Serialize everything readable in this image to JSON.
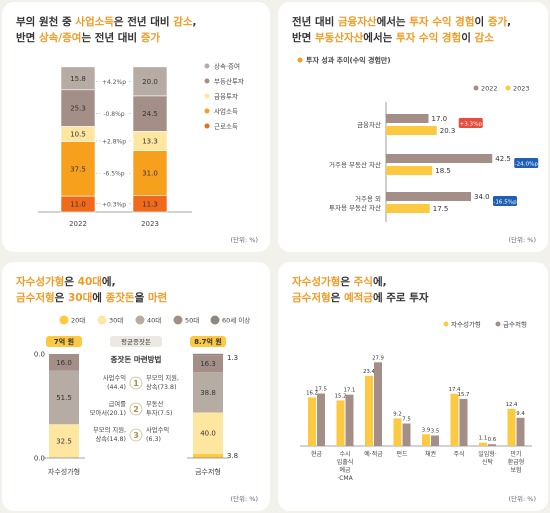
{
  "colors": {
    "gray": "#b6aca3",
    "mauve": "#a48f88",
    "lightYellow": "#fde6a0",
    "yellow": "#fcc941",
    "orange": "#f7a01e",
    "deepOrange": "#ef6a1b",
    "red": "#e94b3c",
    "blue": "#1f5fb4",
    "darkGray": "#8f8882"
  },
  "panel1": {
    "title_l1": [
      "부의 원천 중 ",
      "사업소득",
      "은 전년 대비 ",
      "감소",
      ","
    ],
    "title_l2": [
      "반면 ",
      "상속/증여",
      "는 전년 대비 ",
      "증가"
    ],
    "unit": "(단위: %)"
  },
  "panel2": {
    "title_l1": [
      "전년 대비 ",
      "금융자산",
      "에서는 ",
      "투자 수익 경험",
      "이 ",
      "증가",
      ","
    ],
    "title_l2": [
      "반면 ",
      "부동산자산",
      "에서는 ",
      "투자 수익 경험",
      "이 ",
      "감소"
    ],
    "unit": "(단위: %)"
  },
  "panel3": {
    "title_l1": [
      "자수성가형",
      "은 ",
      "40대",
      "에,"
    ],
    "title_l2": [
      "금수저형",
      "은 ",
      "30대",
      "에 ",
      "종잣돈",
      "을 ",
      "마련"
    ],
    "unit": "(단위: %)"
  },
  "panel4": {
    "title_l1": [
      "자수성가형",
      "은 ",
      "주식",
      "에,"
    ],
    "title_l2": [
      "금수저형",
      "은 ",
      "예적금",
      "에 주로 투자"
    ],
    "unit": "(단위: %)"
  },
  "chart_data": [
    {
      "type": "bar",
      "stacked": true,
      "categories": [
        "2022",
        "2023"
      ],
      "series": [
        {
          "name": "근로소득",
          "values": [
            11.0,
            11.3
          ],
          "color": "deepOrange"
        },
        {
          "name": "사업소득",
          "values": [
            37.5,
            31.0
          ],
          "color": "orange"
        },
        {
          "name": "금융투자",
          "values": [
            10.5,
            13.3
          ],
          "color": "lightYellow"
        },
        {
          "name": "부동산투자",
          "values": [
            25.3,
            24.5
          ],
          "color": "mauve"
        },
        {
          "name": "상속·증여",
          "values": [
            15.8,
            20.0
          ],
          "color": "gray"
        }
      ],
      "change_labels": [
        "+4.2%p",
        "-0.8%p",
        "+2.8%p",
        "-6.5%p",
        "+0.3%p"
      ],
      "legend_order": [
        "상속·증여",
        "부동산투자",
        "금융투자",
        "사업소득",
        "근로소득"
      ]
    },
    {
      "type": "bar",
      "orientation": "horizontal",
      "subtitle": "투자 성과 추이(수익 경험만)",
      "categories": [
        "금융자산",
        "거주용 부동산 자산",
        "거주용 외 투자용 부동산 자산"
      ],
      "category_lines": [
        [
          "금융자산"
        ],
        [
          "거주용 부동산 자산"
        ],
        [
          "거주용 외",
          "투자용 부동산 자산"
        ]
      ],
      "series": [
        {
          "name": "2022",
          "values": [
            17.0,
            42.5,
            34.0
          ],
          "color": "mauve"
        },
        {
          "name": "2023",
          "values": [
            20.3,
            18.5,
            17.5
          ],
          "color": "yellow"
        }
      ],
      "change_labels": [
        "+3.3%p",
        "-24.0%p",
        "-16.5%p"
      ],
      "change_colors": [
        "red",
        "blue",
        "blue"
      ]
    },
    {
      "type": "bar",
      "stacked": true,
      "categories": [
        "자수성가형",
        "금수저형"
      ],
      "headers": [
        "7억 원",
        "8.7억 원"
      ],
      "center_header": "평균종잣돈",
      "method_title": "종잣돈 마련방법",
      "methods": [
        {
          "rank": "1",
          "left": [
            "사업수익",
            "(44.4)"
          ],
          "right": [
            "부모의 지원,",
            "상속(73.8)"
          ]
        },
        {
          "rank": "2",
          "left": [
            "급여를",
            "모아서(20.1)"
          ],
          "right": [
            "부동산",
            "투자(7.5)"
          ]
        },
        {
          "rank": "3",
          "left": [
            "부모의 지원,",
            "상속(14.8)"
          ],
          "right": [
            "사업수익",
            "(6.3)"
          ]
        }
      ],
      "legend": [
        "20대",
        "30대",
        "40대",
        "50대",
        "60세 이상"
      ],
      "legend_colors": [
        "yellow",
        "lightYellow",
        "gray",
        "mauve",
        "darkGray"
      ],
      "series": [
        {
          "name": "20대",
          "values": [
            0.0,
            3.8
          ],
          "color": "yellow"
        },
        {
          "name": "30대",
          "values": [
            32.5,
            40.0
          ],
          "color": "lightYellow"
        },
        {
          "name": "40대",
          "values": [
            51.5,
            38.8
          ],
          "color": "gray"
        },
        {
          "name": "50대",
          "values": [
            16.0,
            16.3
          ],
          "color": "mauve"
        },
        {
          "name": "60세 이상",
          "values": [
            0.0,
            1.3
          ],
          "color": "darkGray"
        }
      ]
    },
    {
      "type": "bar",
      "categories": [
        "현금",
        "수시입출식예금·CMA",
        "예·적금",
        "펀드",
        "채권",
        "주식",
        "일임형·신탁",
        "만기환급형보험"
      ],
      "category_lines": [
        [
          "현금"
        ],
        [
          "수시",
          "입출식",
          "예금",
          "·CMA"
        ],
        [
          "예·적금"
        ],
        [
          "펀드"
        ],
        [
          "채권"
        ],
        [
          "주식"
        ],
        [
          "일임형·",
          "신탁"
        ],
        [
          "만기",
          "환급형",
          "보험"
        ]
      ],
      "series": [
        {
          "name": "자수성가형",
          "values": [
            16.2,
            15.2,
            23.4,
            9.2,
            3.9,
            17.4,
            1.1,
            12.4
          ],
          "color": "yellow"
        },
        {
          "name": "금수저형",
          "values": [
            17.5,
            17.1,
            27.9,
            7.5,
            3.5,
            15.7,
            0.6,
            9.4
          ],
          "color": "mauve"
        }
      ]
    }
  ]
}
